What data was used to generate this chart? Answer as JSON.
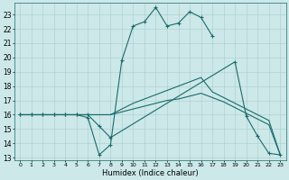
{
  "xlabel": "Humidex (Indice chaleur)",
  "background_color": "#cce8e8",
  "grid_color": "#aacccc",
  "line_color": "#1a6b6b",
  "xlim": [
    -0.5,
    23.5
  ],
  "ylim": [
    12.8,
    23.8
  ],
  "xticks": [
    0,
    1,
    2,
    3,
    4,
    5,
    6,
    7,
    8,
    9,
    10,
    11,
    12,
    13,
    14,
    15,
    16,
    17,
    18,
    19,
    20,
    21,
    22,
    23
  ],
  "yticks": [
    13,
    14,
    15,
    16,
    17,
    18,
    19,
    20,
    21,
    22,
    23
  ],
  "lines": [
    {
      "x": [
        0,
        1,
        2,
        3,
        4,
        5,
        6,
        7,
        8,
        9,
        10,
        11,
        12,
        13,
        14,
        15,
        16,
        17
      ],
      "y": [
        16,
        16,
        16,
        16,
        16,
        16,
        15.8,
        13.2,
        13.9,
        19.8,
        22.2,
        22.5,
        23.5,
        22.2,
        22.4,
        23.2,
        22.8,
        21.5
      ],
      "marker": "+"
    },
    {
      "x": [
        0,
        1,
        2,
        3,
        4,
        5,
        6,
        7,
        8,
        19,
        20,
        21,
        22,
        23
      ],
      "y": [
        16,
        16,
        16,
        16,
        16,
        16,
        16,
        15.2,
        14.4,
        19.7,
        15.9,
        14.5,
        13.3,
        13.2
      ],
      "marker": "+"
    },
    {
      "x": [
        0,
        1,
        2,
        3,
        4,
        5,
        6,
        7,
        8,
        9,
        10,
        11,
        12,
        13,
        14,
        15,
        16,
        17,
        18,
        19,
        20,
        21,
        22,
        23
      ],
      "y": [
        16,
        16,
        16,
        16,
        16,
        16,
        16,
        16,
        16,
        16.4,
        16.8,
        17.1,
        17.4,
        17.7,
        18.0,
        18.3,
        18.6,
        17.6,
        17.2,
        16.8,
        16.4,
        16.0,
        15.6,
        13.2
      ],
      "marker": null
    },
    {
      "x": [
        0,
        1,
        2,
        3,
        4,
        5,
        6,
        7,
        8,
        9,
        10,
        11,
        12,
        13,
        14,
        15,
        16,
        17,
        18,
        19,
        20,
        21,
        22,
        23
      ],
      "y": [
        16,
        16,
        16,
        16,
        16,
        16,
        16,
        16,
        16,
        16.2,
        16.4,
        16.6,
        16.8,
        17.0,
        17.1,
        17.3,
        17.5,
        17.2,
        16.9,
        16.5,
        16.1,
        15.7,
        15.3,
        13.2
      ],
      "marker": null
    }
  ]
}
